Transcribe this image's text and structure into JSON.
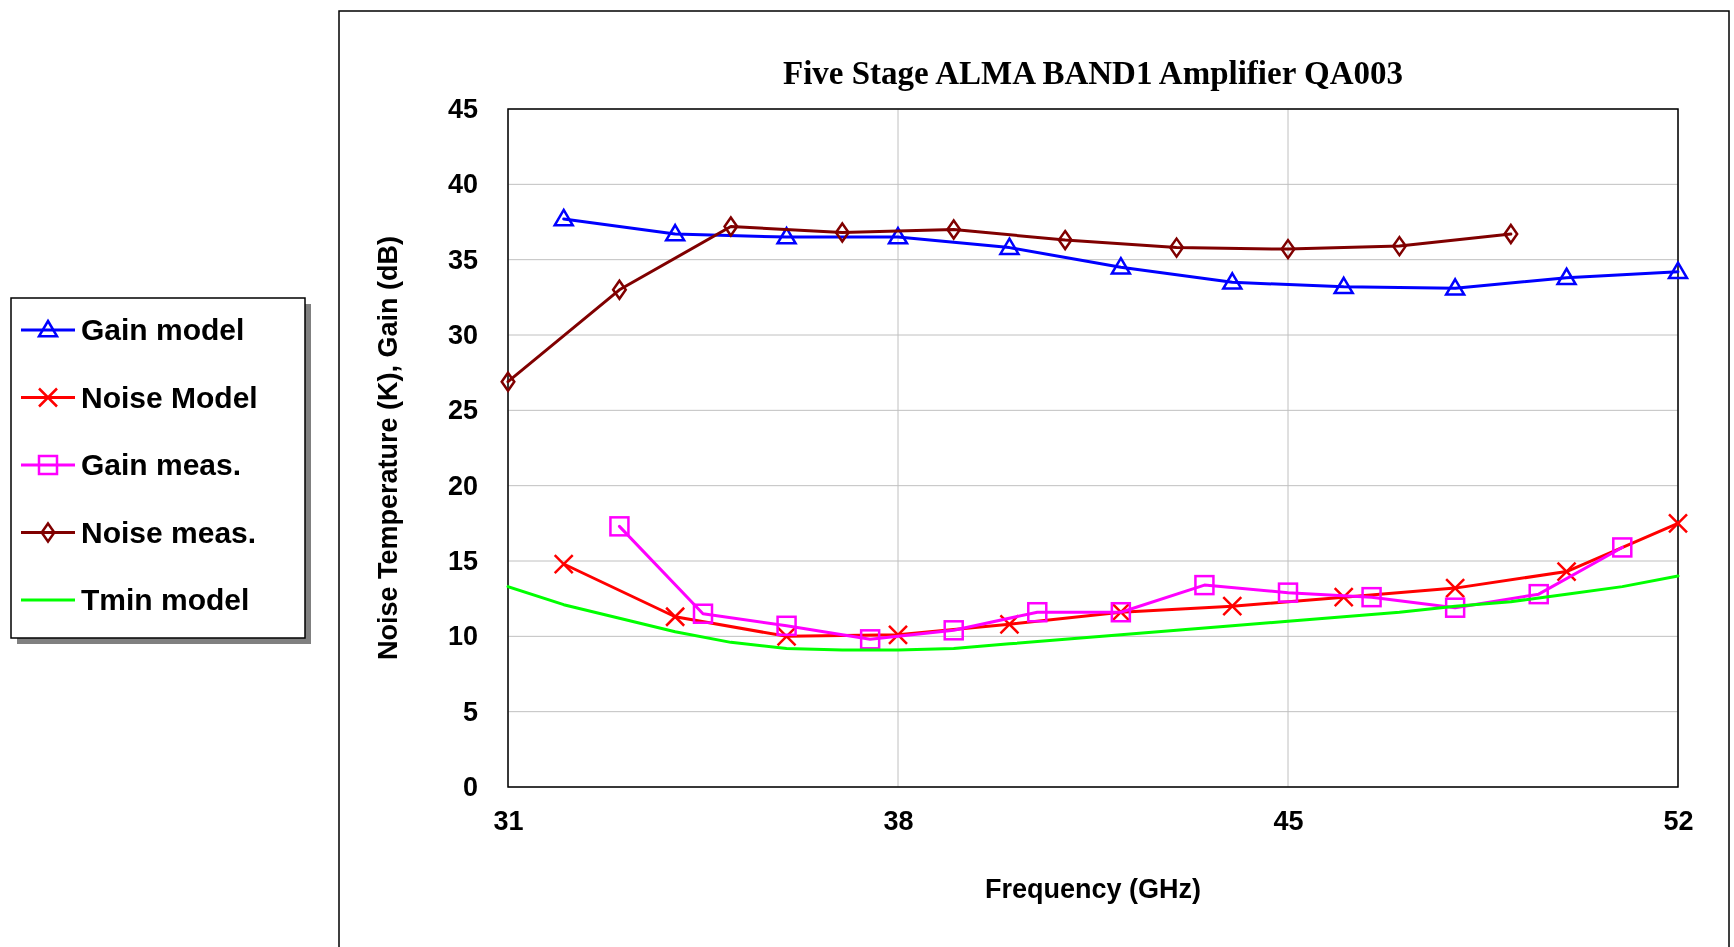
{
  "chart_data": {
    "type": "line",
    "title": "Five Stage ALMA BAND1 Amplifier QA003",
    "xlabel": "Frequency (GHz)",
    "ylabel": "Noise Temperature (K), Gain (dB)",
    "xlim": [
      31,
      52
    ],
    "xticks": [
      31,
      38,
      45,
      52
    ],
    "ylim": [
      0,
      45
    ],
    "yticks": [
      0,
      5,
      10,
      15,
      20,
      25,
      30,
      35,
      40,
      45
    ],
    "grid": true,
    "legend": "left",
    "line_style": "solid",
    "series": [
      {
        "name": "Gain model",
        "color": "#0000ff",
        "marker": "triangle",
        "x": [
          32,
          34,
          36,
          38,
          40,
          42,
          44,
          46,
          48,
          50,
          52
        ],
        "values": [
          37.7,
          36.7,
          36.5,
          36.5,
          35.8,
          34.5,
          33.5,
          33.2,
          33.1,
          33.8,
          34.2
        ]
      },
      {
        "name": "Noise Model",
        "color": "#ff0000",
        "marker": "cross",
        "x": [
          32,
          34,
          36,
          38,
          40,
          42,
          44,
          46,
          48,
          50,
          52
        ],
        "values": [
          14.8,
          11.3,
          10.0,
          10.1,
          10.8,
          11.6,
          12.0,
          12.6,
          13.2,
          14.3,
          17.5
        ]
      },
      {
        "name": "Gain meas.",
        "color": "#ff00ff",
        "marker": "square",
        "x": [
          33,
          34.5,
          36,
          37.5,
          39,
          40.5,
          42,
          43.5,
          45,
          46.5,
          48,
          49.5,
          51
        ],
        "values": [
          17.3,
          11.5,
          10.7,
          9.8,
          10.4,
          11.6,
          11.6,
          13.4,
          12.9,
          12.6,
          11.9,
          12.8,
          15.9
        ]
      },
      {
        "name": "Noise meas.",
        "color": "#800000",
        "marker": "diamond",
        "x": [
          31,
          33,
          35,
          37,
          39,
          41,
          43,
          45,
          47,
          49
        ],
        "values": [
          26.9,
          33.0,
          37.2,
          36.8,
          37.0,
          36.3,
          35.8,
          35.7,
          35.9,
          36.7
        ]
      },
      {
        "name": "Tmin model",
        "color": "#00ff00",
        "marker": "none",
        "x": [
          31,
          32,
          33,
          34,
          35,
          36,
          37,
          38,
          39,
          40,
          41,
          42,
          43,
          44,
          45,
          46,
          47,
          48,
          49,
          50,
          51,
          52
        ],
        "values": [
          13.3,
          12.1,
          11.2,
          10.3,
          9.6,
          9.2,
          9.1,
          9.1,
          9.2,
          9.5,
          9.8,
          10.1,
          10.4,
          10.7,
          11.0,
          11.3,
          11.6,
          12.0,
          12.3,
          12.8,
          13.3,
          14.0
        ]
      }
    ]
  }
}
